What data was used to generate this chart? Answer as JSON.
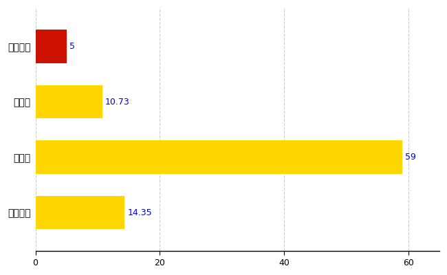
{
  "categories": [
    "全国平均",
    "県最大",
    "県平均",
    "西和賀町"
  ],
  "values": [
    14.35,
    59,
    10.73,
    5
  ],
  "bar_colors": [
    "#FFD700",
    "#FFD700",
    "#FFD700",
    "#CC1100"
  ],
  "labels": [
    "14.35",
    "59",
    "10.73",
    "5"
  ],
  "xlim": [
    0,
    65
  ],
  "xticks": [
    0,
    20,
    40,
    60
  ],
  "background_color": "#FFFFFF",
  "grid_color": "#CCCCCC",
  "bar_height": 0.6,
  "label_fontsize": 9,
  "tick_fontsize": 9,
  "label_color": "#0000CC",
  "ytick_fontsize": 10
}
